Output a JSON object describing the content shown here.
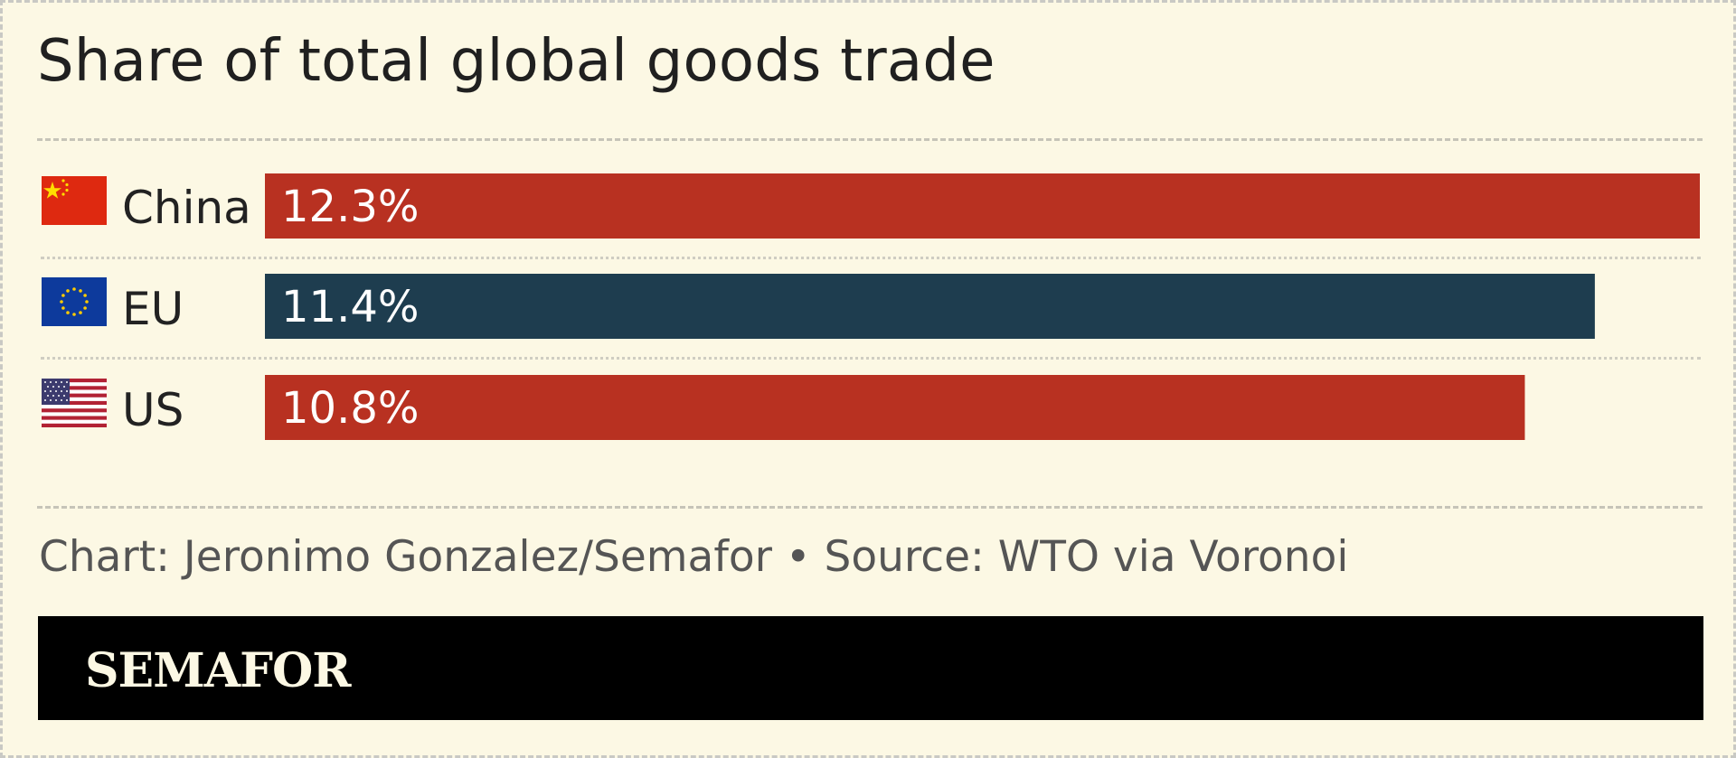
{
  "title": "Share of total global goods trade",
  "credit": "Chart: Jeronimo Gonzalez/Semafor • Source: WTO via Voronoi",
  "brand": "SEMAFOR",
  "colors": {
    "background": "#fcf8e4",
    "red": "#b83121",
    "navy": "#1e3d4f"
  },
  "rows": [
    {
      "label": "China",
      "flag": "china-flag-icon"
    },
    {
      "label": "EU",
      "flag": "eu-flag-icon"
    },
    {
      "label": "US",
      "flag": "us-flag-icon"
    }
  ],
  "chart_data": {
    "type": "bar",
    "orientation": "horizontal",
    "title": "Share of total global goods trade",
    "categories": [
      "China",
      "EU",
      "US"
    ],
    "values": [
      12.3,
      11.4,
      10.8
    ],
    "value_labels": [
      "12.3%",
      "11.4%",
      "10.8%"
    ],
    "bar_colors": [
      "#b83121",
      "#1e3d4f",
      "#b83121"
    ],
    "xlim": [
      0,
      12.3
    ],
    "grid": false,
    "legend": "none"
  }
}
